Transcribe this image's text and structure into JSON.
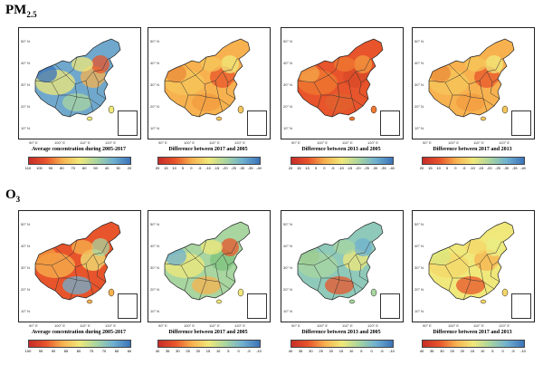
{
  "sections": [
    {
      "title": "PM",
      "subscript": "2.5"
    },
    {
      "title": "O",
      "subscript": "3"
    }
  ],
  "lat_labels": [
    "50° N",
    "40° N",
    "30° N",
    "20° N",
    "10° N"
  ],
  "lon_labels": [
    "90° E",
    "100° E",
    "110° E",
    "120° E"
  ],
  "colors": {
    "conc": [
      "#3b73b9",
      "#6fb0d0",
      "#a8d5a0",
      "#f0e87a",
      "#f7b24f",
      "#e8542b",
      "#c62d2a"
    ],
    "diff": [
      "#c62d2a",
      "#e8542b",
      "#f7b24f",
      "#f0e87a",
      "#a8d5a0",
      "#6fb0d0",
      "#3b73b9"
    ]
  },
  "panels": [
    {
      "id": "pm-avg",
      "caption": "Average concentration during 2005-2017",
      "ticks": [
        "110",
        "100",
        "90",
        "80",
        "70",
        "60",
        "50",
        "40",
        "30",
        "20"
      ],
      "tone": "mixed"
    },
    {
      "id": "pm-d17-05",
      "caption": "Difference between 2017 and 2005",
      "ticks": [
        "20",
        "15",
        "10",
        "5",
        "0",
        "-5",
        "-10",
        "-15",
        "-20",
        "-25",
        "-30",
        "-35",
        "-40"
      ],
      "tone": "orange"
    },
    {
      "id": "pm-d13-05",
      "caption": "Difference between 2013 and 2005",
      "ticks": [
        "20",
        "15",
        "10",
        "5",
        "0",
        "-5",
        "-10",
        "-15",
        "-20",
        "-25",
        "-30",
        "-35",
        "-40"
      ],
      "tone": "red"
    },
    {
      "id": "pm-d17-13",
      "caption": "Difference between 2017 and 2013",
      "ticks": [
        "20",
        "15",
        "10",
        "5",
        "0",
        "-5",
        "-10",
        "-15",
        "-20",
        "-25",
        "-30",
        "-35",
        "-40"
      ],
      "tone": "orange"
    },
    {
      "id": "o3-avg",
      "caption": "Average concentration during 2005-2017",
      "ticks": [
        "100",
        "95",
        "90",
        "85",
        "80",
        "75",
        "70",
        "65",
        "60"
      ],
      "tone": "warm"
    },
    {
      "id": "o3-d17-05",
      "caption": "Difference between 2017 and 2005",
      "ticks": [
        "40",
        "35",
        "30",
        "25",
        "20",
        "15",
        "10",
        "5",
        "0",
        "-5",
        "-10"
      ],
      "tone": "green"
    },
    {
      "id": "o3-d13-05",
      "caption": "Difference between 2013 and 2005",
      "ticks": [
        "40",
        "35",
        "30",
        "25",
        "20",
        "15",
        "10",
        "5",
        "0",
        "-5",
        "-10"
      ],
      "tone": "teal"
    },
    {
      "id": "o3-d17-13",
      "caption": "Difference between 2017 and 2013",
      "ticks": [
        "40",
        "35",
        "30",
        "25",
        "20",
        "15",
        "10",
        "5",
        "0",
        "-5",
        "-10"
      ],
      "tone": "yellow"
    }
  ]
}
